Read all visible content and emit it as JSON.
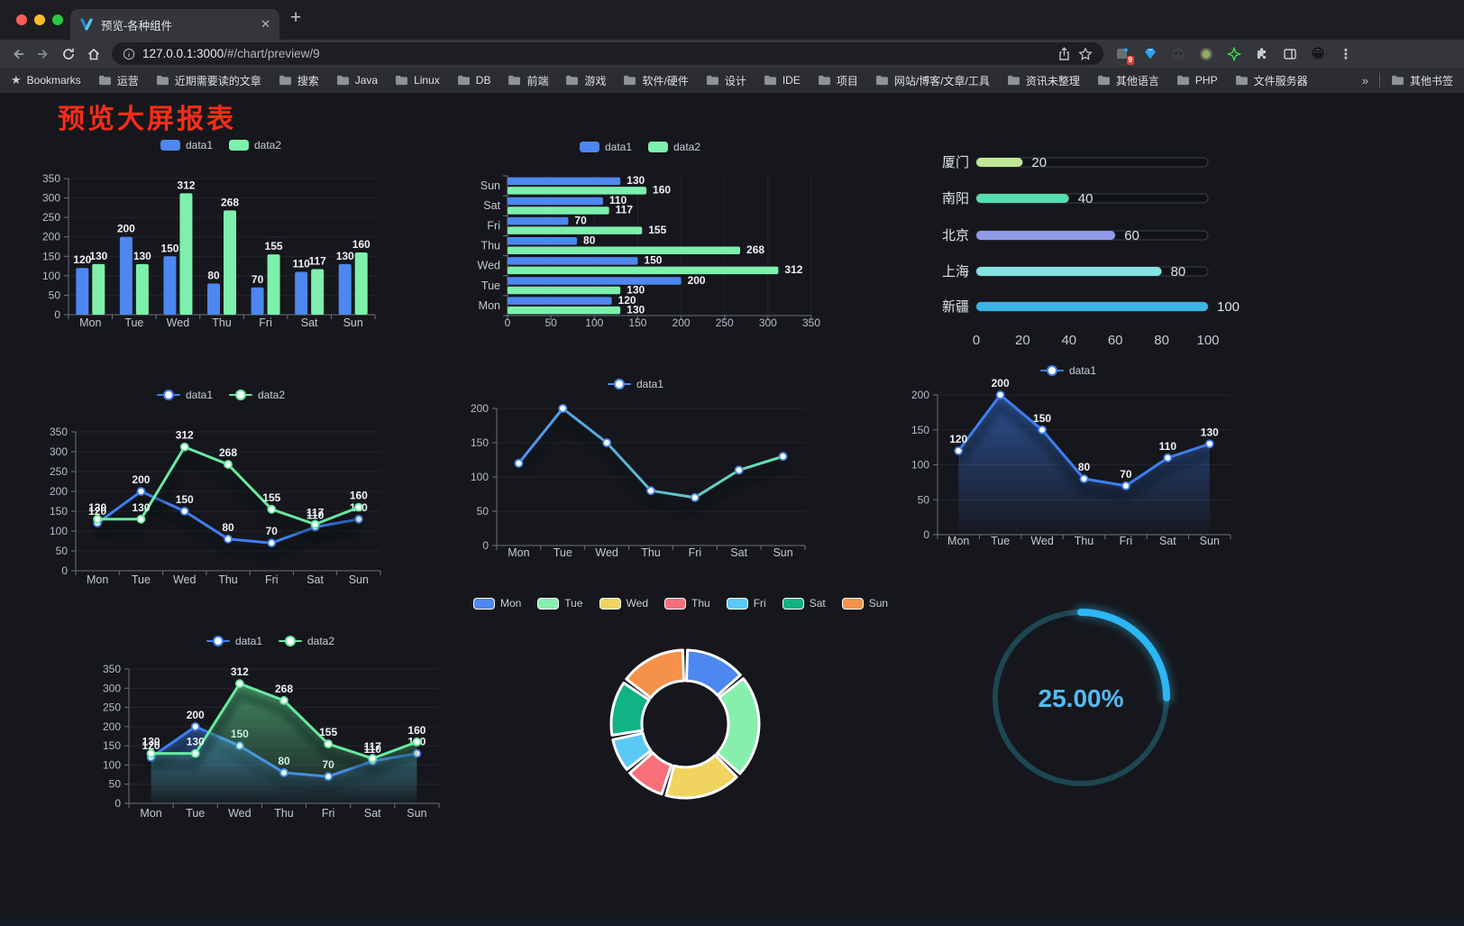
{
  "browser": {
    "tab_title": "预览-各种组件",
    "new_tab": "+",
    "close_glyph": "✕",
    "url_host": "127.0.0.1:3000",
    "url_path": "/#/chart/preview/9",
    "bookmarks_label": "Bookmarks",
    "bookmarks": [
      "运营",
      "近期需要读的文章",
      "搜索",
      "Java",
      "Linux",
      "DB",
      "前端",
      "游戏",
      "软件/硬件",
      "设计",
      "IDE",
      "项目",
      "网站/博客/文章/工具",
      "资讯未整理",
      "其他语言",
      "PHP",
      "文件服务器"
    ],
    "bookmarks_overflow": "»",
    "other_bookmarks": "其他书签",
    "extension_badge": "9",
    "menu_glyph": "⋮"
  },
  "page": {
    "title": "预览大屏报表"
  },
  "chart_data": [
    {
      "id": "bar-grouped",
      "type": "bar",
      "orientation": "vertical",
      "categories": [
        "Mon",
        "Tue",
        "Wed",
        "Thu",
        "Fri",
        "Sat",
        "Sun"
      ],
      "series": [
        {
          "name": "data1",
          "color": "#4d87f0",
          "values": [
            120,
            200,
            150,
            80,
            70,
            110,
            130
          ]
        },
        {
          "name": "data2",
          "color": "#7df0ac",
          "values": [
            130,
            130,
            312,
            268,
            155,
            117,
            160
          ]
        }
      ],
      "ylim": [
        0,
        350
      ],
      "ytick_step": 50,
      "grid": true,
      "value_labels": true,
      "legend_position": "top",
      "legend_marker": "rect"
    },
    {
      "id": "hbar-grouped",
      "type": "bar",
      "orientation": "horizontal",
      "categories": [
        "Mon",
        "Tue",
        "Wed",
        "Thu",
        "Fri",
        "Sat",
        "Sun"
      ],
      "series": [
        {
          "name": "data1",
          "color": "#4d87f0",
          "values": [
            120,
            200,
            150,
            80,
            70,
            110,
            130
          ]
        },
        {
          "name": "data2",
          "color": "#7df0ac",
          "values": [
            130,
            130,
            312,
            268,
            155,
            117,
            160
          ]
        }
      ],
      "xlim": [
        0,
        350
      ],
      "xtick_step": 50,
      "grid": true,
      "value_labels": true,
      "legend_position": "top",
      "legend_marker": "rect"
    },
    {
      "id": "city-progress",
      "type": "bar",
      "subtype": "progress-list",
      "max": 100,
      "xticks": [
        0,
        20,
        40,
        60,
        80,
        100
      ],
      "items": [
        {
          "label": "厦门",
          "value": 20,
          "color": "#c0e796"
        },
        {
          "label": "南阳",
          "value": 40,
          "color": "#55deae"
        },
        {
          "label": "北京",
          "value": 60,
          "color": "#8f9ae8"
        },
        {
          "label": "上海",
          "value": 80,
          "color": "#83e3e3"
        },
        {
          "label": "新疆",
          "value": 100,
          "color": "#3cb4e6"
        }
      ]
    },
    {
      "id": "line-two",
      "type": "line",
      "categories": [
        "Mon",
        "Tue",
        "Wed",
        "Thu",
        "Fri",
        "Sat",
        "Sun"
      ],
      "series": [
        {
          "name": "data1",
          "color": "#3e7ef2",
          "values": [
            120,
            200,
            150,
            80,
            70,
            110,
            130
          ]
        },
        {
          "name": "data2",
          "color": "#67ea9f",
          "values": [
            130,
            130,
            312,
            268,
            155,
            117,
            160
          ]
        }
      ],
      "ylim": [
        0,
        350
      ],
      "ytick_step": 50,
      "grid": true,
      "value_labels": true,
      "legend_position": "top",
      "legend_marker": "dot"
    },
    {
      "id": "line-gradient",
      "type": "line",
      "categories": [
        "Mon",
        "Tue",
        "Wed",
        "Thu",
        "Fri",
        "Sat",
        "Sun"
      ],
      "series": [
        {
          "name": "data1",
          "color": "#4d8cf3",
          "color_gradient": [
            "#4d8cf3",
            "#68ecae"
          ],
          "values": [
            120,
            200,
            150,
            80,
            70,
            110,
            130
          ]
        }
      ],
      "ylim": [
        0,
        200
      ],
      "ytick_step": 50,
      "grid": true,
      "value_labels": false,
      "legend_position": "top",
      "legend_marker": "dot"
    },
    {
      "id": "area-single",
      "type": "area",
      "categories": [
        "Mon",
        "Tue",
        "Wed",
        "Thu",
        "Fri",
        "Sat",
        "Sun"
      ],
      "series": [
        {
          "name": "data1",
          "color": "#3e7ef2",
          "values": [
            120,
            200,
            150,
            80,
            70,
            110,
            130
          ]
        }
      ],
      "ylim": [
        0,
        200
      ],
      "ytick_step": 50,
      "grid": true,
      "value_labels": true,
      "legend_position": "top",
      "legend_marker": "dot"
    },
    {
      "id": "area-two",
      "type": "area",
      "categories": [
        "Mon",
        "Tue",
        "Wed",
        "Thu",
        "Fri",
        "Sat",
        "Sun"
      ],
      "series": [
        {
          "name": "data1",
          "color": "#3e7ef2",
          "values": [
            120,
            200,
            150,
            80,
            70,
            110,
            130
          ]
        },
        {
          "name": "data2",
          "color": "#67ea9f",
          "values": [
            130,
            130,
            312,
            268,
            155,
            117,
            160
          ]
        }
      ],
      "ylim": [
        0,
        350
      ],
      "ytick_step": 50,
      "grid": true,
      "value_labels": true,
      "legend_position": "top",
      "legend_marker": "dot"
    },
    {
      "id": "donut",
      "type": "pie",
      "subtype": "donut",
      "categories": [
        "Mon",
        "Tue",
        "Wed",
        "Thu",
        "Fri",
        "Sat",
        "Sun"
      ],
      "values": [
        120,
        200,
        150,
        80,
        70,
        110,
        130
      ],
      "colors": [
        "#4d87f0",
        "#86efad",
        "#f1d35f",
        "#f76f79",
        "#5bc9f5",
        "#10b383",
        "#f5914a"
      ],
      "legend_position": "top"
    },
    {
      "id": "gauge",
      "type": "gauge",
      "value": 25,
      "max": 100,
      "display": "25.00%",
      "color": "#2bb7f5",
      "track_color": "#1d4752",
      "text_color": "#55baf1"
    }
  ]
}
